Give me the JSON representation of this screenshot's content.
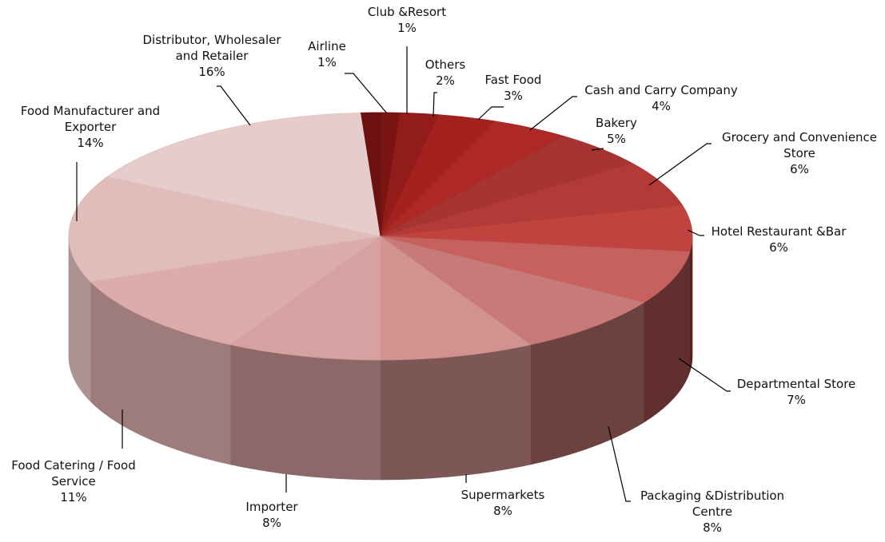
{
  "chart_data": {
    "type": "pie",
    "style": "3d",
    "start": "12 o'clock",
    "direction": "clockwise",
    "slices": [
      {
        "label": [
          "Club &Resort"
        ],
        "value": 1,
        "value_label": "1%",
        "color": "#7a1412"
      },
      {
        "label": [
          "Others"
        ],
        "value": 2,
        "value_label": "2%",
        "color": "#921c19"
      },
      {
        "label": [
          "Fast Food"
        ],
        "value": 3,
        "value_label": "3%",
        "color": "#a3211f"
      },
      {
        "label": [
          "Cash and Carry Company"
        ],
        "value": 4,
        "value_label": "4%",
        "color": "#ad2826"
      },
      {
        "label": [
          "Bakery"
        ],
        "value": 5,
        "value_label": "5%",
        "color": "#a63532"
      },
      {
        "label": [
          "Grocery and Convenience",
          "Store"
        ],
        "value": 6,
        "value_label": "6%",
        "color": "#b33a37"
      },
      {
        "label": [
          "Hotel Restaurant  &Bar"
        ],
        "value": 6,
        "value_label": "6%",
        "color": "#c04340"
      },
      {
        "label": [
          "Departmental Store"
        ],
        "value": 7,
        "value_label": "7%",
        "color": "#c6615e"
      },
      {
        "label": [
          "Packaging  &Distribution",
          "Centre"
        ],
        "value": 8,
        "value_label": "8%",
        "color": "#c77a77"
      },
      {
        "label": [
          "Supermarkets"
        ],
        "value": 8,
        "value_label": "8%",
        "color": "#d29290"
      },
      {
        "label": [
          "Importer"
        ],
        "value": 8,
        "value_label": "8%",
        "color": "#d6a1a0"
      },
      {
        "label": [
          "Food Catering  / Food",
          "Service"
        ],
        "value": 11,
        "value_label": "11%",
        "color": "#dcacab"
      },
      {
        "label": [
          "Food Manufacturer and",
          "Exporter"
        ],
        "value": 14,
        "value_label": "14%",
        "color": "#e0bcbb"
      },
      {
        "label": [
          "Distributor, Wholesaler",
          "and Retailer"
        ],
        "value": 16,
        "value_label": "16%",
        "color": "#e6cccb"
      },
      {
        "label": [
          "Airline"
        ],
        "value": 1,
        "value_label": "1%",
        "color": "#6e1010"
      }
    ]
  }
}
